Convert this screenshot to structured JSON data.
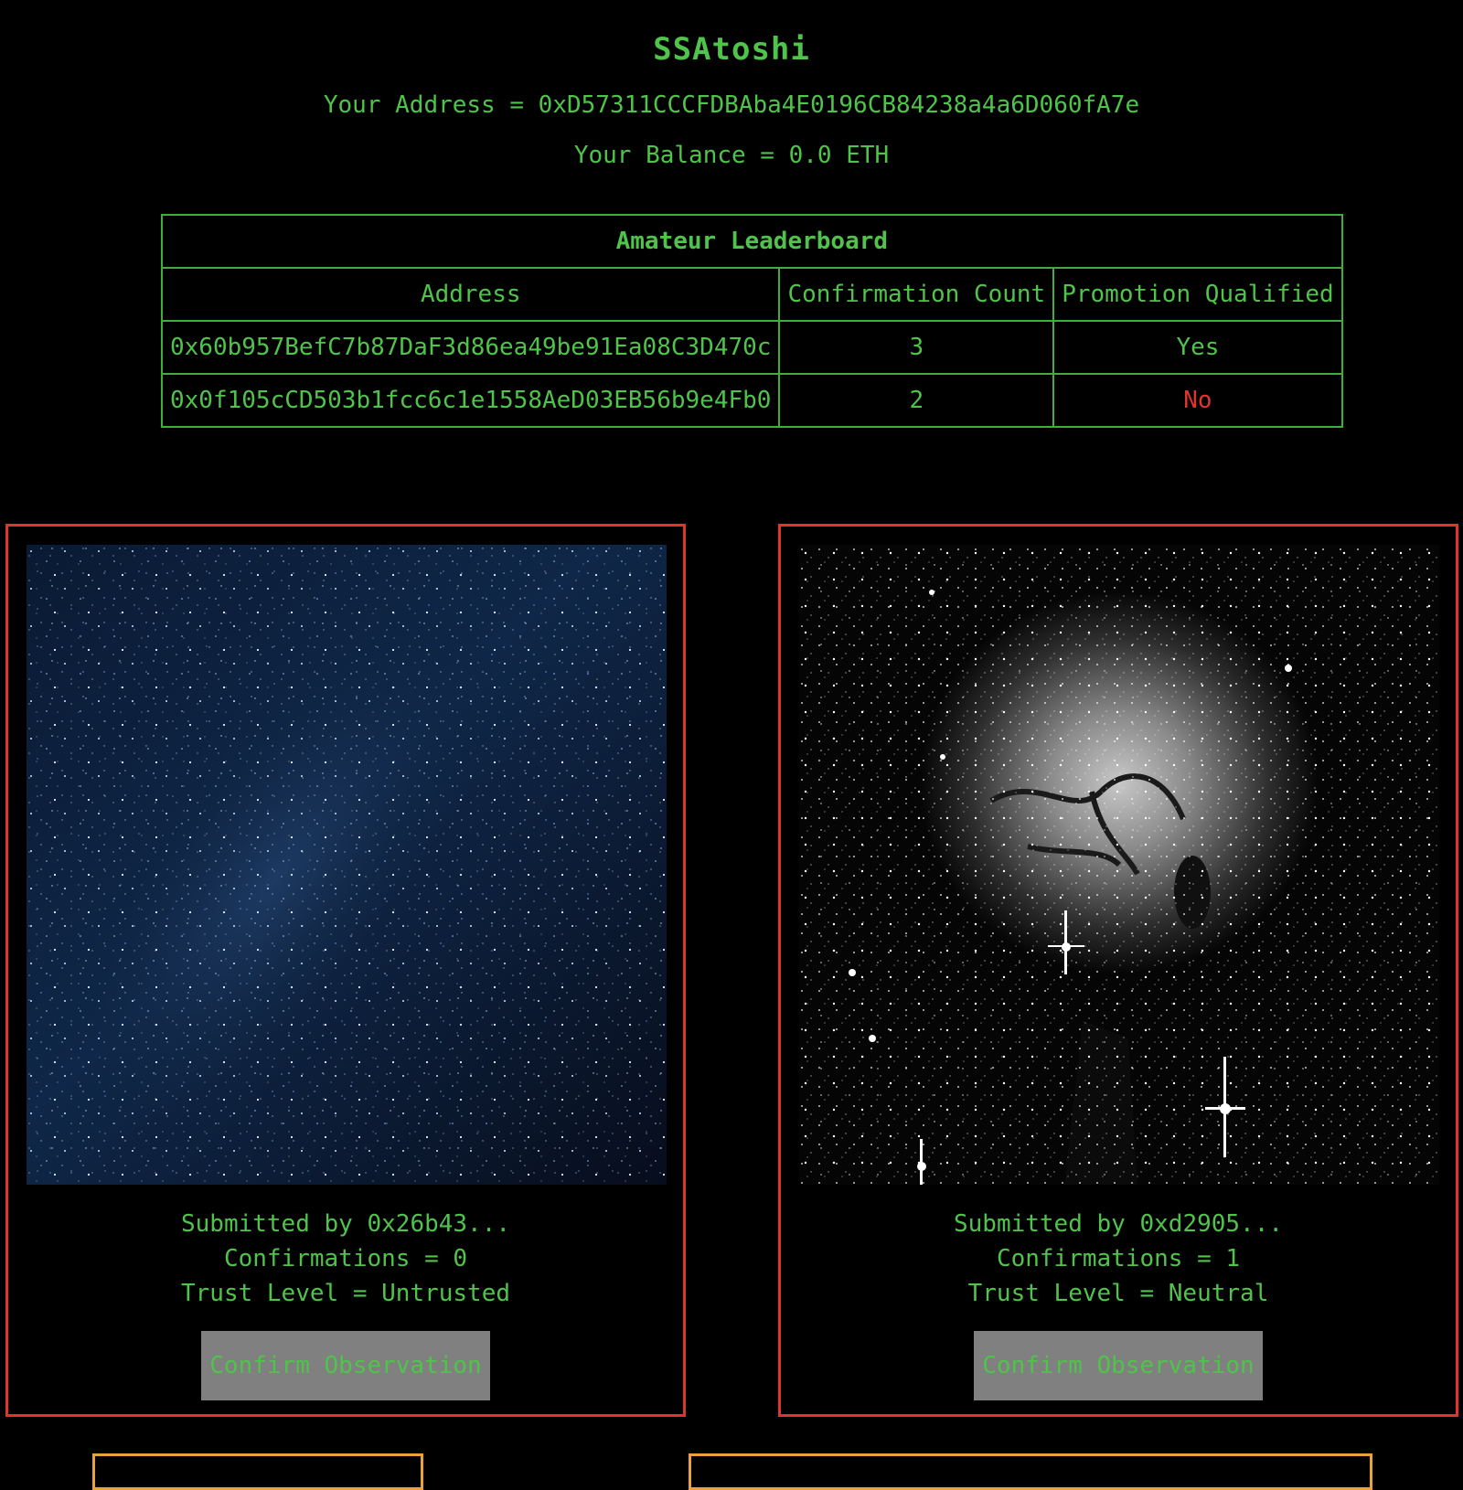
{
  "header": {
    "title": "SSAtoshi",
    "address_label": "Your Address = 0xD57311CCCFDBAba4E0196CB84238a4a6D060fA7e",
    "balance_label": "Your Balance = 0.0 ETH"
  },
  "leaderboard": {
    "caption": "Amateur Leaderboard",
    "columns": [
      "Address",
      "Confirmation Count",
      "Promotion Qualified"
    ],
    "rows": [
      {
        "address": "0x60b957BefC7b87DaF3d86ea49be91Ea08C3D470c",
        "count": "3",
        "qualified": "Yes"
      },
      {
        "address": "0x0f105cCD503b1fcc6c1e1558AeD03EB56b9e4Fb0",
        "count": "2",
        "qualified": "No"
      }
    ]
  },
  "observations": [
    {
      "image": "starry-night-sky-photo",
      "submitted_by": "Submitted by 0x26b43...",
      "confirmations": "Confirmations = 0",
      "trust_level": "Trust Level = Untrusted",
      "button_label": "Confirm Observation"
    },
    {
      "image": "nebula-grayscale-photo",
      "submitted_by": "Submitted by 0xd2905...",
      "confirmations": "Confirmations = 1",
      "trust_level": "Trust Level = Neutral",
      "button_label": "Confirm Observation"
    }
  ],
  "colors": {
    "background": "#000000",
    "text_green": "#4fc34a",
    "border_green": "#3fae3a",
    "card_border_red": "#e0352b",
    "no_red": "#e0352b",
    "button_gray": "#808080",
    "next_card_orange": "#e8a33a"
  }
}
